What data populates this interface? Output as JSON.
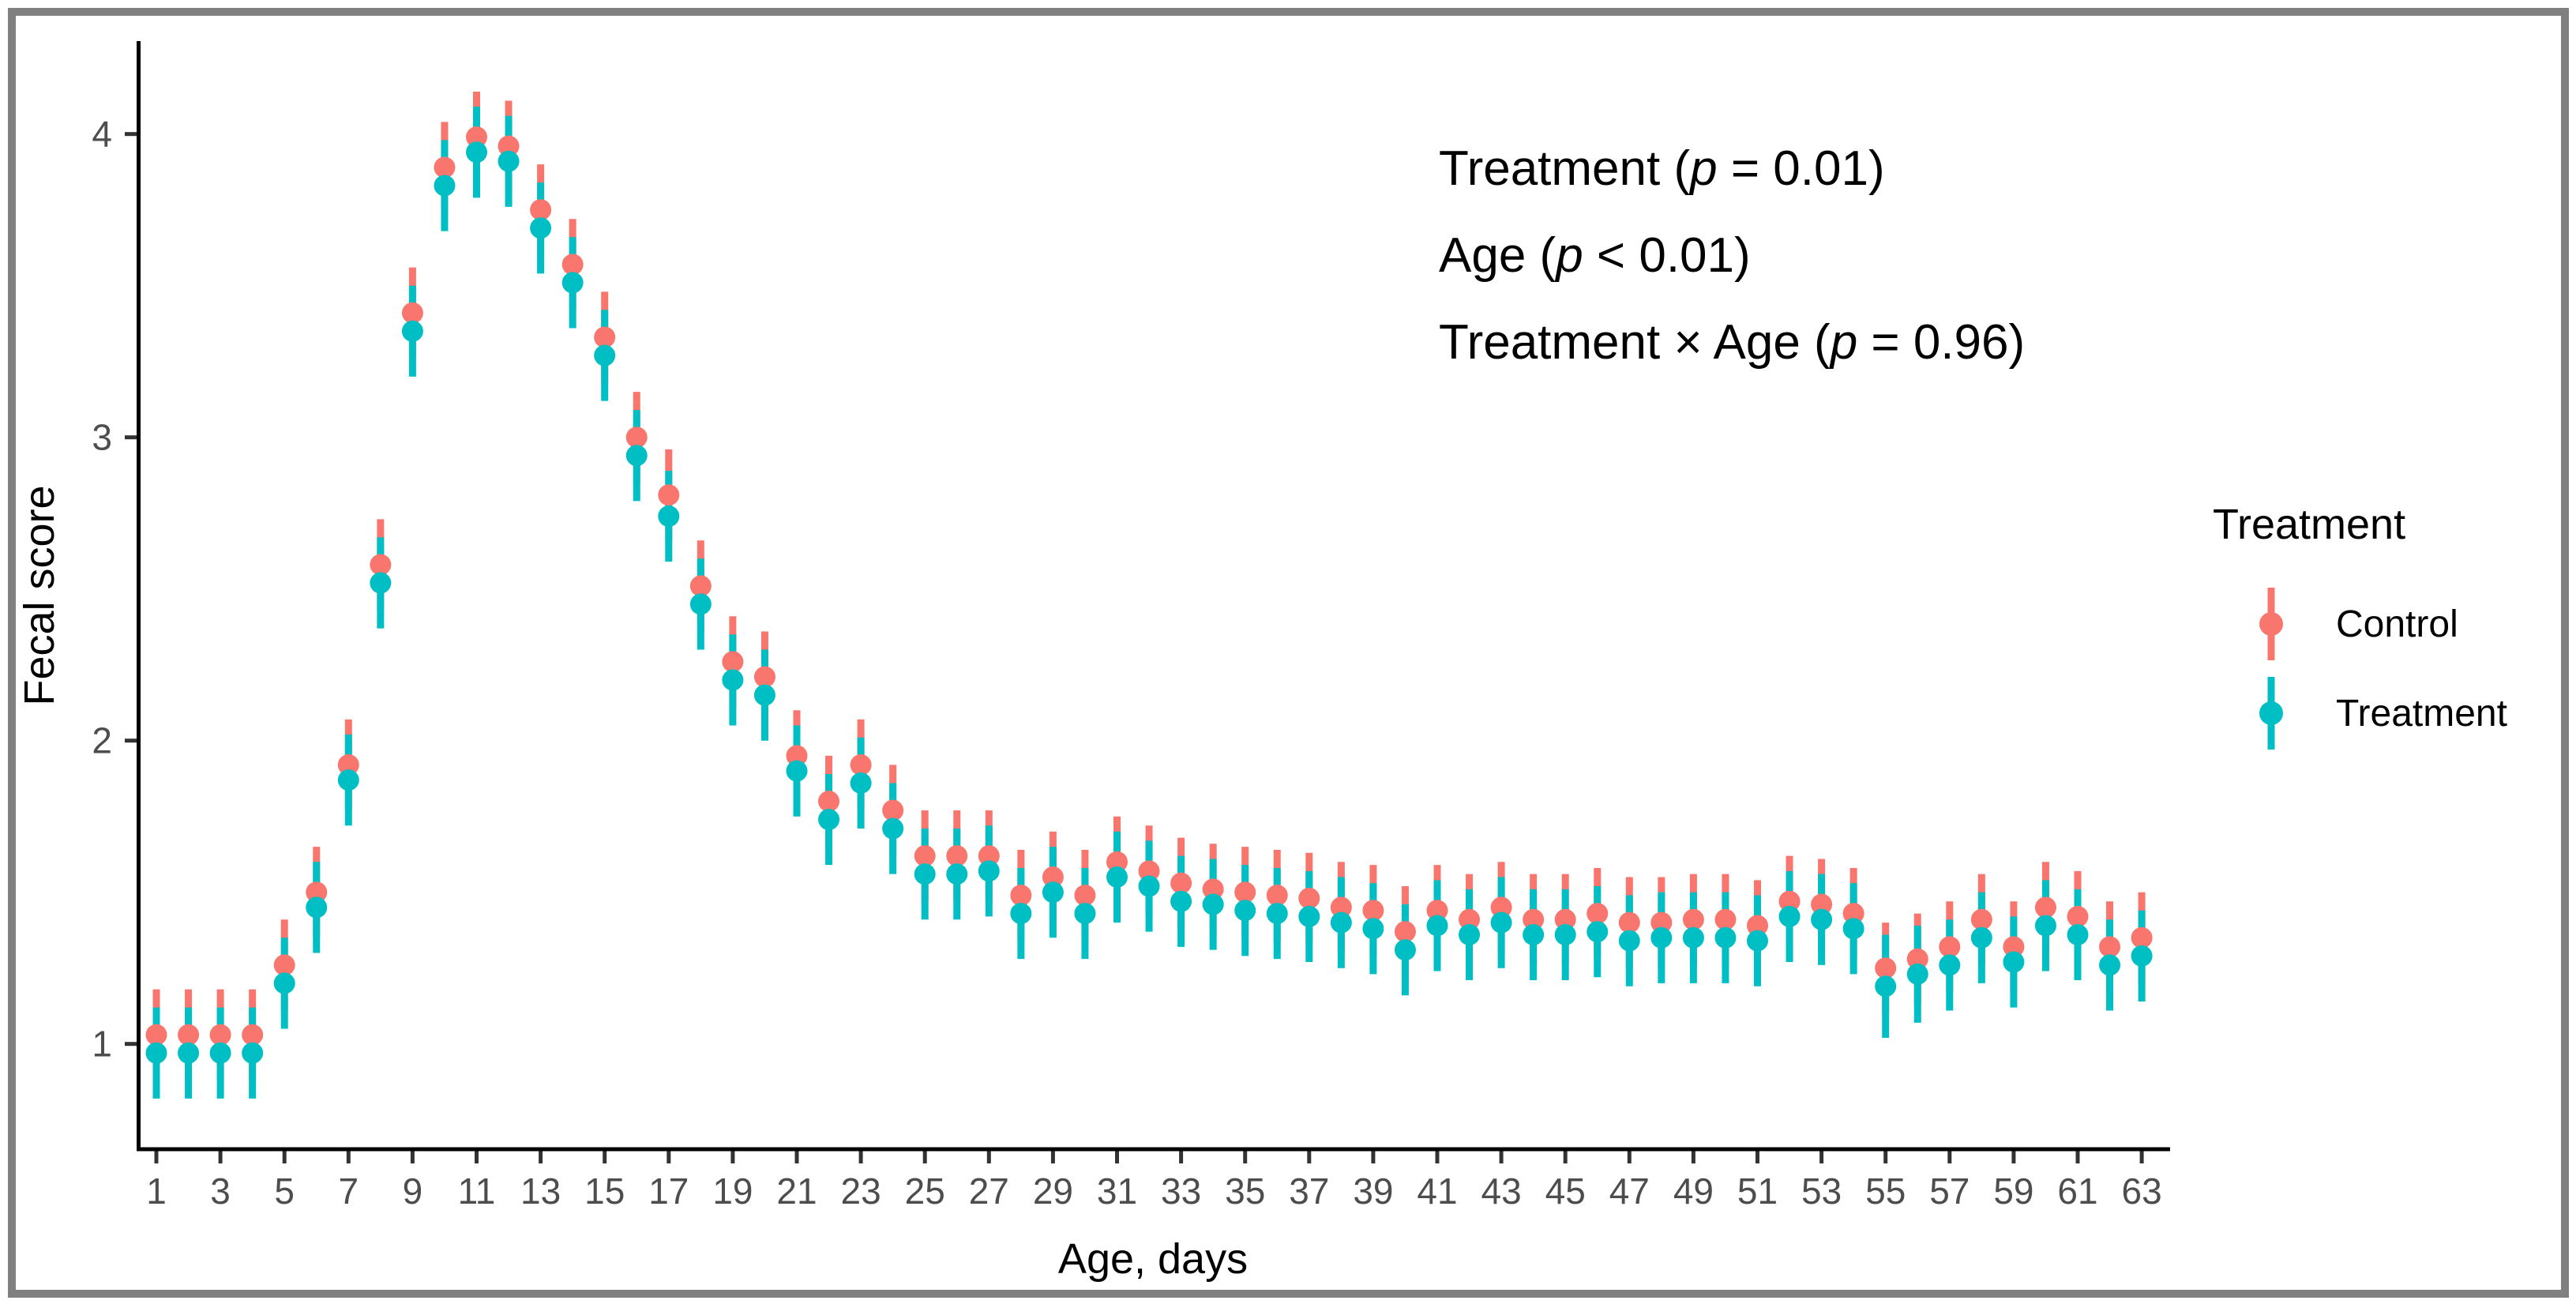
{
  "figure": {
    "frame_color": "#808080",
    "background": "#ffffff",
    "annotation": {
      "lines": [
        {
          "segments": [
            [
              "Treatment (",
              false
            ],
            [
              "p",
              true
            ],
            [
              " = 0.01)",
              false
            ]
          ]
        },
        {
          "segments": [
            [
              "Age (",
              false
            ],
            [
              "p",
              true
            ],
            [
              " < 0.01)",
              false
            ]
          ]
        },
        {
          "segments": [
            [
              "Treatment ",
              false
            ],
            [
              "×",
              false
            ],
            [
              " Age (",
              false
            ],
            [
              "p",
              true
            ],
            [
              " = 0.96)",
              false
            ]
          ]
        }
      ],
      "plain_text": [
        "Treatment (p = 0.01)",
        "Age (p < 0.01)",
        "Treatment × Age (p = 0.96)"
      ],
      "color": "#000000"
    },
    "legend": {
      "title": "Treatment",
      "entries": [
        {
          "label": "Control",
          "color": "#F8766D"
        },
        {
          "label": "Treatment",
          "color": "#00BFC4"
        }
      ],
      "position": "right"
    },
    "axis_text_color": "#4d4d4d",
    "axis_line_color": "#000000",
    "tick_color": "#333333"
  },
  "chart_data": {
    "type": "scatter",
    "subtype": "pointrange",
    "title": "",
    "xlabel": "Age, days",
    "ylabel": "Fecal score",
    "x": [
      1,
      2,
      3,
      4,
      5,
      6,
      7,
      8,
      9,
      10,
      11,
      12,
      13,
      14,
      15,
      16,
      17,
      18,
      19,
      20,
      21,
      22,
      23,
      24,
      25,
      26,
      27,
      28,
      29,
      30,
      31,
      32,
      33,
      34,
      35,
      36,
      37,
      38,
      39,
      40,
      41,
      42,
      43,
      44,
      45,
      46,
      47,
      48,
      49,
      50,
      51,
      52,
      53,
      54,
      55,
      56,
      57,
      58,
      59,
      60,
      61,
      62,
      63
    ],
    "x_tick_labels": [
      1,
      3,
      5,
      7,
      9,
      11,
      13,
      15,
      17,
      19,
      21,
      23,
      25,
      27,
      29,
      31,
      33,
      35,
      37,
      39,
      41,
      43,
      45,
      47,
      49,
      51,
      53,
      55,
      57,
      59,
      61,
      63
    ],
    "y_ticks": [
      1,
      2,
      3,
      4
    ],
    "ylim": [
      0.65,
      4.31
    ],
    "xlim": [
      0.45,
      63.9
    ],
    "grid": false,
    "legend_position": "right",
    "ci_half_default": 0.15,
    "ci_half_overrides": {
      "Treatment": {
        "55": 0.17,
        "56": 0.16
      }
    },
    "series": [
      {
        "name": "Control",
        "color": "#F8766D",
        "values": [
          1.03,
          1.03,
          1.03,
          1.03,
          1.26,
          1.5,
          1.92,
          2.58,
          3.41,
          3.89,
          3.99,
          3.96,
          3.75,
          3.57,
          3.33,
          3.0,
          2.81,
          2.51,
          2.26,
          2.21,
          1.95,
          1.8,
          1.92,
          1.77,
          1.62,
          1.62,
          1.62,
          1.49,
          1.55,
          1.49,
          1.6,
          1.57,
          1.53,
          1.51,
          1.5,
          1.49,
          1.48,
          1.45,
          1.44,
          1.37,
          1.44,
          1.41,
          1.45,
          1.41,
          1.41,
          1.43,
          1.4,
          1.4,
          1.41,
          1.41,
          1.39,
          1.47,
          1.46,
          1.43,
          1.25,
          1.28,
          1.32,
          1.41,
          1.32,
          1.45,
          1.42,
          1.32,
          1.35
        ]
      },
      {
        "name": "Treatment",
        "color": "#00BFC4",
        "values": [
          0.97,
          0.97,
          0.97,
          0.97,
          1.2,
          1.45,
          1.87,
          2.52,
          3.35,
          3.83,
          3.94,
          3.91,
          3.69,
          3.51,
          3.27,
          2.94,
          2.74,
          2.45,
          2.2,
          2.15,
          1.9,
          1.74,
          1.86,
          1.71,
          1.56,
          1.56,
          1.57,
          1.43,
          1.5,
          1.43,
          1.55,
          1.52,
          1.47,
          1.46,
          1.44,
          1.43,
          1.42,
          1.4,
          1.38,
          1.31,
          1.39,
          1.36,
          1.4,
          1.36,
          1.36,
          1.37,
          1.34,
          1.35,
          1.35,
          1.35,
          1.34,
          1.42,
          1.41,
          1.38,
          1.19,
          1.23,
          1.26,
          1.35,
          1.27,
          1.39,
          1.36,
          1.26,
          1.29
        ]
      }
    ]
  }
}
